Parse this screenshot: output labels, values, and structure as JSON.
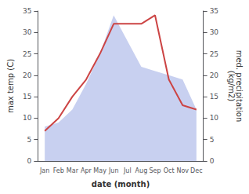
{
  "chart_data": {
    "type": "line",
    "categories": [
      "Jan",
      "Feb",
      "Mar",
      "Apr",
      "May",
      "Jun",
      "Jul",
      "Aug",
      "Sep",
      "Oct",
      "Nov",
      "Dec"
    ],
    "series": [
      {
        "type": "area",
        "axis": "y2",
        "color": "#c8d0f0",
        "values": [
          8,
          9,
          12,
          18,
          25,
          34,
          28,
          22,
          21,
          20,
          19,
          12
        ]
      },
      {
        "type": "line",
        "color": "#cc4444",
        "values": [
          7,
          10,
          15,
          19,
          25,
          32,
          32,
          32,
          34,
          19,
          13,
          12
        ]
      }
    ],
    "xlabel": "date (month)",
    "ylabel": "max temp (C)",
    "y2label": "med. precipitation\n(kg/m2)",
    "ylim": [
      0,
      35
    ],
    "yticks": [
      0,
      5,
      10,
      15,
      20,
      25,
      30,
      35
    ],
    "y2lim": [
      0,
      35
    ],
    "y2ticks": [
      0,
      5,
      10,
      15,
      20,
      25,
      30,
      35
    ],
    "grid": false
  }
}
